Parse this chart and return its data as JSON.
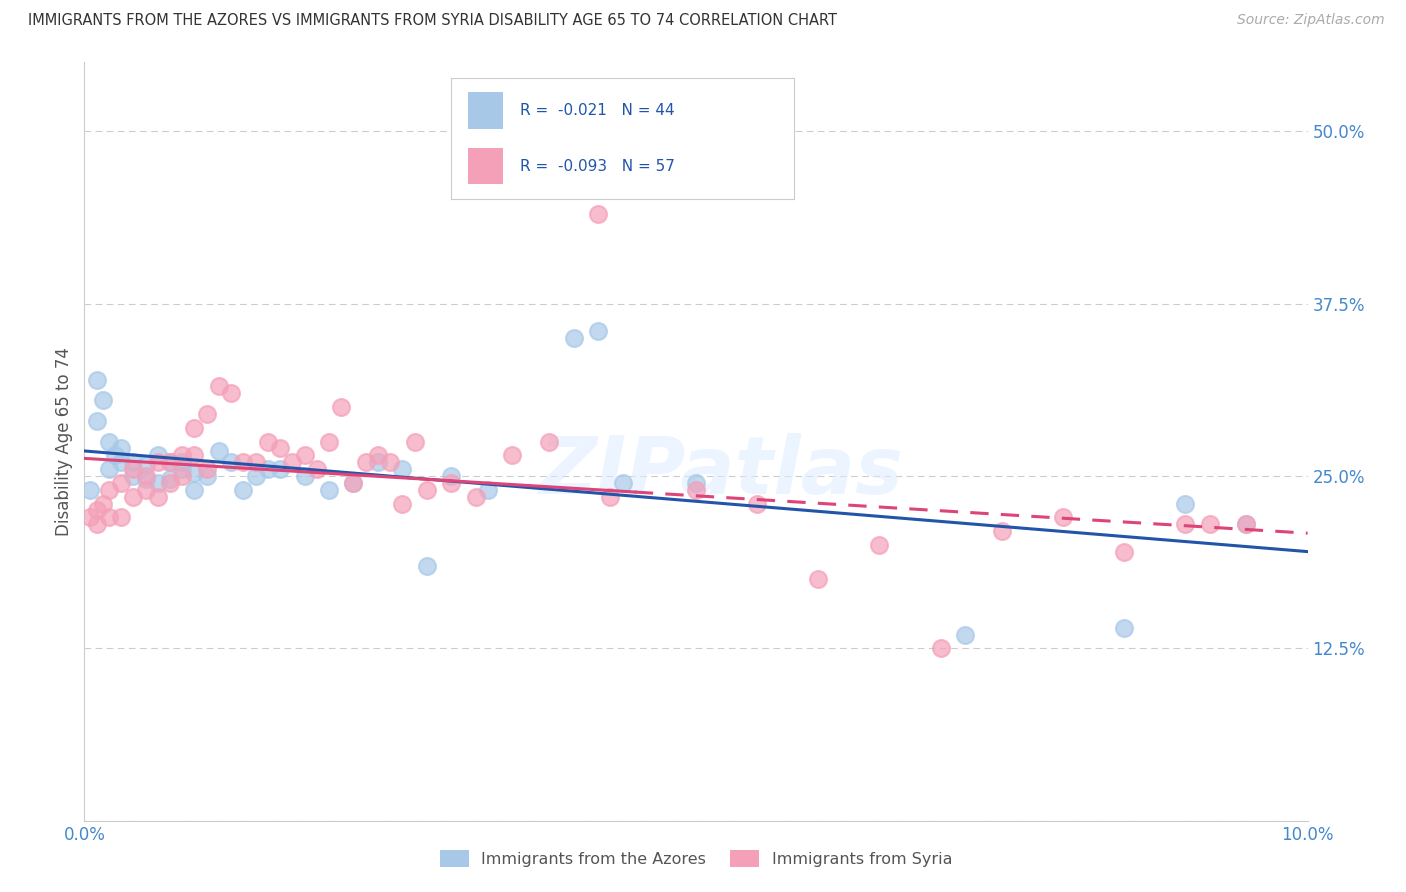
{
  "title": "IMMIGRANTS FROM THE AZORES VS IMMIGRANTS FROM SYRIA DISABILITY AGE 65 TO 74 CORRELATION CHART",
  "source": "Source: ZipAtlas.com",
  "ylabel": "Disability Age 65 to 74",
  "r_azores": -0.021,
  "n_azores": 44,
  "r_syria": -0.093,
  "n_syria": 57,
  "xlim": [
    0.0,
    0.1
  ],
  "ylim": [
    0.0,
    0.55
  ],
  "xticks": [
    0.0,
    0.02,
    0.04,
    0.06,
    0.08,
    0.1
  ],
  "xticklabels": [
    "0.0%",
    "",
    "",
    "",
    "",
    "10.0%"
  ],
  "yticks": [
    0.0,
    0.125,
    0.25,
    0.375,
    0.5
  ],
  "yticklabels": [
    "",
    "12.5%",
    "25.0%",
    "37.5%",
    "50.0%"
  ],
  "color_azores": "#a8c8e8",
  "color_syria": "#f4a0b8",
  "line_color_azores": "#2255aa",
  "line_color_syria": "#dd4477",
  "background": "#ffffff",
  "azores_x": [
    0.0005,
    0.001,
    0.001,
    0.0015,
    0.002,
    0.002,
    0.0025,
    0.003,
    0.003,
    0.004,
    0.004,
    0.005,
    0.005,
    0.006,
    0.006,
    0.007,
    0.007,
    0.008,
    0.008,
    0.009,
    0.009,
    0.01,
    0.011,
    0.012,
    0.013,
    0.014,
    0.015,
    0.016,
    0.018,
    0.02,
    0.022,
    0.024,
    0.026,
    0.028,
    0.03,
    0.033,
    0.04,
    0.042,
    0.044,
    0.05,
    0.072,
    0.085,
    0.09,
    0.095
  ],
  "azores_y": [
    0.24,
    0.32,
    0.29,
    0.305,
    0.255,
    0.275,
    0.265,
    0.27,
    0.26,
    0.26,
    0.25,
    0.248,
    0.258,
    0.245,
    0.265,
    0.26,
    0.248,
    0.26,
    0.255,
    0.252,
    0.24,
    0.25,
    0.268,
    0.26,
    0.24,
    0.25,
    0.255,
    0.255,
    0.25,
    0.24,
    0.245,
    0.26,
    0.255,
    0.185,
    0.25,
    0.24,
    0.35,
    0.355,
    0.245,
    0.245,
    0.135,
    0.14,
    0.23,
    0.215
  ],
  "syria_x": [
    0.0005,
    0.001,
    0.001,
    0.0015,
    0.002,
    0.002,
    0.003,
    0.003,
    0.004,
    0.004,
    0.005,
    0.005,
    0.006,
    0.006,
    0.007,
    0.007,
    0.008,
    0.008,
    0.009,
    0.009,
    0.01,
    0.01,
    0.011,
    0.012,
    0.013,
    0.014,
    0.015,
    0.016,
    0.017,
    0.018,
    0.019,
    0.02,
    0.021,
    0.022,
    0.023,
    0.024,
    0.025,
    0.026,
    0.027,
    0.028,
    0.03,
    0.032,
    0.035,
    0.038,
    0.042,
    0.043,
    0.05,
    0.055,
    0.06,
    0.065,
    0.07,
    0.075,
    0.08,
    0.085,
    0.09,
    0.092,
    0.095
  ],
  "syria_y": [
    0.22,
    0.225,
    0.215,
    0.23,
    0.24,
    0.22,
    0.245,
    0.22,
    0.255,
    0.235,
    0.25,
    0.24,
    0.26,
    0.235,
    0.26,
    0.245,
    0.265,
    0.25,
    0.285,
    0.265,
    0.295,
    0.255,
    0.315,
    0.31,
    0.26,
    0.26,
    0.275,
    0.27,
    0.26,
    0.265,
    0.255,
    0.275,
    0.3,
    0.245,
    0.26,
    0.265,
    0.26,
    0.23,
    0.275,
    0.24,
    0.245,
    0.235,
    0.265,
    0.275,
    0.44,
    0.235,
    0.24,
    0.23,
    0.175,
    0.2,
    0.125,
    0.21,
    0.22,
    0.195,
    0.215,
    0.215,
    0.215
  ]
}
